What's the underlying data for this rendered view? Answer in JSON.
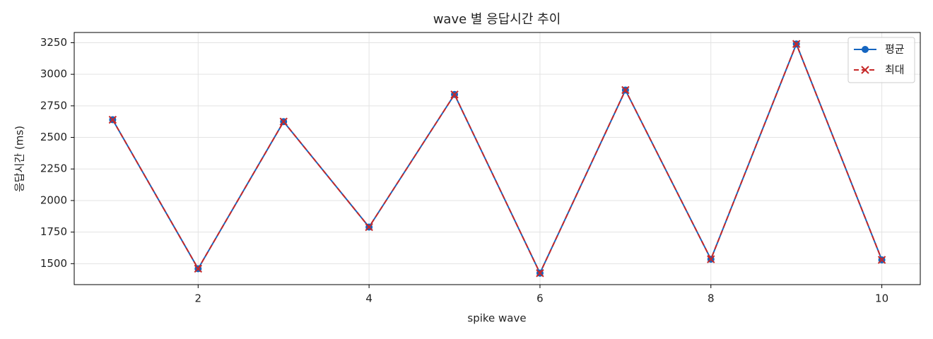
{
  "chart_data": {
    "type": "line",
    "title": "wave 별 응답시간 추이",
    "x_label": "spike wave",
    "y_label": "응답시간 (ms)",
    "x": [
      1,
      2,
      3,
      4,
      5,
      6,
      7,
      8,
      9,
      10
    ],
    "series": [
      {
        "name": "평균",
        "color": "#1565c0",
        "marker": "o",
        "linestyle": "solid",
        "values": [
          2640,
          1460,
          2625,
          1790,
          2840,
          1425,
          2875,
          1535,
          3240,
          1530
        ]
      },
      {
        "name": "최대",
        "color": "#c62828",
        "marker": "x",
        "linestyle": "dashed",
        "values": [
          2640,
          1460,
          2625,
          1790,
          2840,
          1425,
          2875,
          1535,
          3240,
          1530
        ]
      }
    ],
    "xlim": [
      0.55,
      10.45
    ],
    "xticks": [
      2,
      4,
      6,
      8,
      10
    ],
    "ylim": [
      1334,
      3331
    ],
    "yticks": [
      1500,
      1750,
      2000,
      2250,
      2500,
      2750,
      3000,
      3250
    ],
    "grid": true,
    "legend": "upper right"
  }
}
